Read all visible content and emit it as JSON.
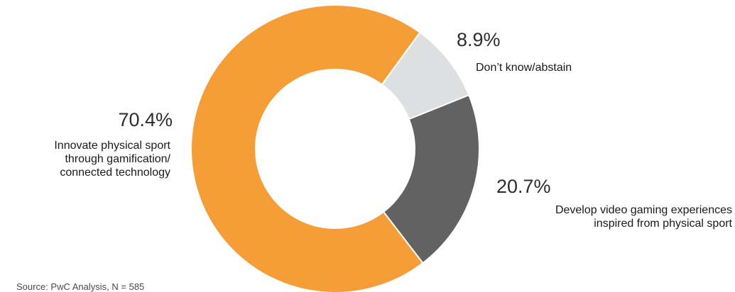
{
  "chart_data": {
    "type": "pie",
    "donut": true,
    "slices": [
      {
        "label": "Don’t know/abstain",
        "value": 8.9,
        "value_label": "8.9%",
        "color": "#dedfe0"
      },
      {
        "label": "Develop video gaming experiences inspired from physical sport",
        "value": 20.7,
        "value_label": "20.7%",
        "color": "#626262"
      },
      {
        "label": "Innovate physical sport through gamification/ connected technology",
        "value": 70.4,
        "value_label": "70.4%",
        "color": "#f59d36"
      }
    ],
    "label_lines": {
      "abstain": [
        "Don’t know/abstain"
      ],
      "develop": [
        "Develop video gaming experiences",
        "inspired from physical sport"
      ],
      "innovate": [
        "Innovate physical sport",
        "through gamification/",
        "connected technology"
      ]
    },
    "source": "Source: PwC Analysis, N = 585"
  }
}
